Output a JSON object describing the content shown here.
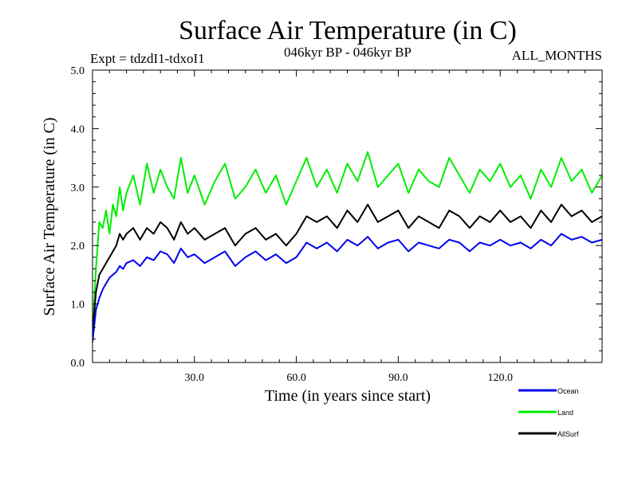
{
  "chart_data": {
    "type": "line",
    "title": "Surface Air Temperature (in C)",
    "subtitle": "046kyr BP - 046kyr BP",
    "experiment_label": "Expt = tdzdI1-tdxoI1",
    "months_label": "ALL_MONTHS",
    "xlabel": "Time (in years since start)",
    "ylabel": "Surface Air Temperature (in C)",
    "xlim": [
      0,
      150
    ],
    "ylim": [
      0.0,
      5.0
    ],
    "x_ticks": [
      30,
      60,
      90,
      120
    ],
    "x_tick_labels": [
      "30.0",
      "60.0",
      "90.0",
      "120.0"
    ],
    "y_ticks": [
      0,
      1,
      2,
      3,
      4,
      5
    ],
    "y_tick_labels": [
      "0.0",
      "1.0",
      "2.0",
      "3.0",
      "4.0",
      "5.0"
    ],
    "grid": false,
    "legend_position": "bottom-right",
    "series": [
      {
        "name": "Land",
        "color": "#00ee00",
        "x": [
          0,
          1,
          2,
          3,
          4,
          5,
          6,
          7,
          8,
          9,
          10,
          12,
          14,
          16,
          18,
          20,
          22,
          24,
          26,
          28,
          30,
          33,
          36,
          39,
          42,
          45,
          48,
          51,
          54,
          57,
          60,
          63,
          66,
          69,
          72,
          75,
          78,
          81,
          84,
          87,
          90,
          93,
          96,
          99,
          102,
          105,
          108,
          111,
          114,
          117,
          120,
          123,
          126,
          129,
          132,
          135,
          138,
          141,
          144,
          147,
          150
        ],
        "values": [
          0.5,
          1.6,
          2.4,
          2.3,
          2.6,
          2.2,
          2.7,
          2.5,
          3.0,
          2.6,
          2.9,
          3.2,
          2.7,
          3.4,
          2.9,
          3.3,
          3.0,
          2.8,
          3.5,
          2.9,
          3.2,
          2.7,
          3.1,
          3.4,
          2.8,
          3.0,
          3.3,
          2.9,
          3.2,
          2.7,
          3.1,
          3.5,
          3.0,
          3.3,
          2.9,
          3.4,
          3.1,
          3.6,
          3.0,
          3.2,
          3.4,
          2.9,
          3.3,
          3.1,
          3.0,
          3.5,
          3.2,
          2.9,
          3.3,
          3.1,
          3.4,
          3.0,
          3.2,
          2.8,
          3.3,
          3.0,
          3.5,
          3.1,
          3.3,
          2.9,
          3.2
        ]
      },
      {
        "name": "AllSurf",
        "color": "#000000",
        "x": [
          0,
          1,
          2,
          3,
          4,
          5,
          6,
          7,
          8,
          9,
          10,
          12,
          14,
          16,
          18,
          20,
          22,
          24,
          26,
          28,
          30,
          33,
          36,
          39,
          42,
          45,
          48,
          51,
          54,
          57,
          60,
          63,
          66,
          69,
          72,
          75,
          78,
          81,
          84,
          87,
          90,
          93,
          96,
          99,
          102,
          105,
          108,
          111,
          114,
          117,
          120,
          123,
          126,
          129,
          132,
          135,
          138,
          141,
          144,
          147,
          150
        ],
        "values": [
          0.5,
          1.2,
          1.5,
          1.6,
          1.7,
          1.8,
          1.9,
          2.0,
          2.2,
          2.1,
          2.2,
          2.3,
          2.1,
          2.3,
          2.2,
          2.4,
          2.3,
          2.1,
          2.4,
          2.2,
          2.3,
          2.1,
          2.2,
          2.3,
          2.0,
          2.2,
          2.3,
          2.1,
          2.2,
          2.0,
          2.2,
          2.5,
          2.4,
          2.5,
          2.3,
          2.6,
          2.4,
          2.7,
          2.4,
          2.5,
          2.6,
          2.3,
          2.5,
          2.4,
          2.3,
          2.6,
          2.5,
          2.3,
          2.5,
          2.4,
          2.6,
          2.4,
          2.5,
          2.3,
          2.6,
          2.4,
          2.7,
          2.5,
          2.6,
          2.4,
          2.5
        ]
      },
      {
        "name": "Ocean",
        "color": "#0000ee",
        "x": [
          0,
          1,
          2,
          3,
          4,
          5,
          6,
          7,
          8,
          9,
          10,
          12,
          14,
          16,
          18,
          20,
          22,
          24,
          26,
          28,
          30,
          33,
          36,
          39,
          42,
          45,
          48,
          51,
          54,
          57,
          60,
          63,
          66,
          69,
          72,
          75,
          78,
          81,
          84,
          87,
          90,
          93,
          96,
          99,
          102,
          105,
          108,
          111,
          114,
          117,
          120,
          123,
          126,
          129,
          132,
          135,
          138,
          141,
          144,
          147,
          150
        ],
        "values": [
          0.35,
          0.9,
          1.1,
          1.25,
          1.35,
          1.45,
          1.5,
          1.55,
          1.65,
          1.6,
          1.7,
          1.75,
          1.65,
          1.8,
          1.75,
          1.9,
          1.85,
          1.7,
          1.95,
          1.8,
          1.85,
          1.7,
          1.8,
          1.9,
          1.65,
          1.8,
          1.9,
          1.75,
          1.85,
          1.7,
          1.8,
          2.05,
          1.95,
          2.05,
          1.9,
          2.1,
          2.0,
          2.15,
          1.95,
          2.05,
          2.1,
          1.9,
          2.05,
          2.0,
          1.95,
          2.1,
          2.05,
          1.9,
          2.05,
          2.0,
          2.1,
          2.0,
          2.05,
          1.95,
          2.1,
          2.0,
          2.2,
          2.1,
          2.15,
          2.05,
          2.1
        ]
      }
    ],
    "legend": [
      {
        "name": "Ocean",
        "color": "#0000ee"
      },
      {
        "name": "Land",
        "color": "#00ee00"
      },
      {
        "name": "AllSurf",
        "color": "#000000"
      }
    ]
  }
}
